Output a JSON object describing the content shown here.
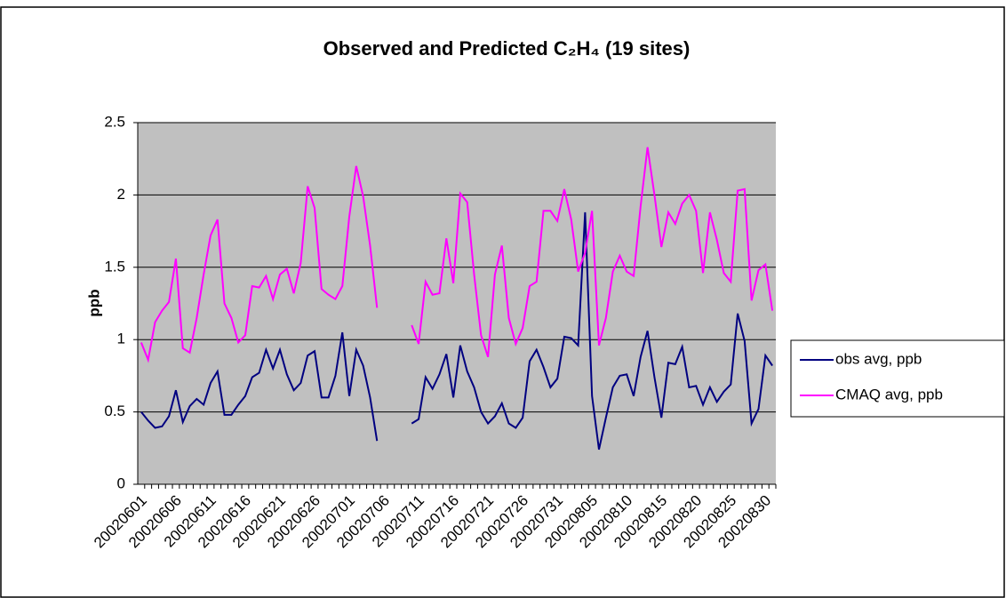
{
  "chart_data": {
    "type": "line",
    "title": "Observed and Predicted C₂H₄ (19 sites)",
    "y_label": "ppb",
    "categories": [
      "20020601",
      null,
      null,
      null,
      null,
      "20020606",
      null,
      null,
      null,
      null,
      "20020611",
      null,
      null,
      null,
      null,
      "20020616",
      null,
      null,
      null,
      null,
      "20020621",
      null,
      null,
      null,
      null,
      "20020626",
      null,
      null,
      null,
      null,
      "20020701",
      null,
      null,
      null,
      null,
      "20020706",
      null,
      null,
      null,
      null,
      "20020711",
      null,
      null,
      null,
      null,
      "20020716",
      null,
      null,
      null,
      null,
      "20020721",
      null,
      null,
      null,
      null,
      "20020726",
      null,
      null,
      null,
      null,
      "20020731",
      null,
      null,
      null,
      null,
      "20020805",
      null,
      null,
      null,
      null,
      "20020810",
      null,
      null,
      null,
      null,
      "20020815",
      null,
      null,
      null,
      null,
      "20020820",
      null,
      null,
      null,
      null,
      "20020825",
      null,
      null,
      null,
      null,
      "20020830",
      null
    ],
    "series": [
      {
        "name": "obs avg, ppb",
        "color": "#000080",
        "values": [
          0.5,
          0.44,
          0.39,
          0.4,
          0.47,
          0.65,
          0.43,
          0.54,
          0.59,
          0.55,
          0.7,
          0.78,
          0.48,
          0.48,
          0.55,
          0.61,
          0.74,
          0.77,
          0.93,
          0.8,
          0.93,
          0.76,
          0.65,
          0.7,
          0.89,
          0.92,
          0.6,
          0.6,
          0.75,
          1.05,
          0.61,
          0.93,
          0.82,
          0.6,
          0.3,
          null,
          null,
          null,
          null,
          0.42,
          0.45,
          0.74,
          0.66,
          0.76,
          0.9,
          0.6,
          0.96,
          0.78,
          0.67,
          0.5,
          0.42,
          0.47,
          0.56,
          0.42,
          0.39,
          0.46,
          0.85,
          0.93,
          0.81,
          0.67,
          0.73,
          1.02,
          1.01,
          0.96,
          1.88,
          0.61,
          0.24,
          0.46,
          0.67,
          0.75,
          0.76,
          0.61,
          0.88,
          1.06,
          0.74,
          0.46,
          0.84,
          0.83,
          0.95,
          0.67,
          0.68,
          0.55,
          0.67,
          0.57,
          0.64,
          0.69,
          1.18,
          0.99,
          0.42,
          0.52,
          0.89,
          0.82
        ]
      },
      {
        "name": "CMAQ avg, ppb",
        "color": "#ff00ff",
        "values": [
          0.98,
          0.86,
          1.12,
          1.2,
          1.26,
          1.56,
          0.94,
          0.91,
          1.15,
          1.45,
          1.72,
          1.83,
          1.25,
          1.15,
          0.98,
          1.03,
          1.37,
          1.36,
          1.44,
          1.28,
          1.45,
          1.49,
          1.32,
          1.53,
          2.06,
          1.91,
          1.35,
          1.31,
          1.28,
          1.37,
          1.85,
          2.2,
          1.99,
          1.65,
          1.22,
          null,
          null,
          null,
          null,
          1.1,
          0.97,
          1.4,
          1.31,
          1.32,
          1.7,
          1.39,
          2.01,
          1.95,
          1.45,
          1.03,
          0.88,
          1.45,
          1.65,
          1.15,
          0.97,
          1.08,
          1.37,
          1.4,
          1.89,
          1.89,
          1.82,
          2.04,
          1.83,
          1.47,
          1.6,
          1.89,
          0.96,
          1.15,
          1.47,
          1.58,
          1.47,
          1.44,
          1.92,
          2.33,
          2.0,
          1.64,
          1.88,
          1.8,
          1.94,
          2.0,
          1.89,
          1.46,
          1.88,
          1.69,
          1.46,
          1.4,
          2.03,
          2.04,
          1.27,
          1.48,
          1.52,
          1.2
        ]
      }
    ],
    "ylim": [
      0,
      2.5
    ],
    "yticks": [
      0,
      0.5,
      1,
      1.5,
      2,
      2.5
    ],
    "grid": true,
    "legend": "right",
    "plot_background": "#c0c0c0"
  }
}
